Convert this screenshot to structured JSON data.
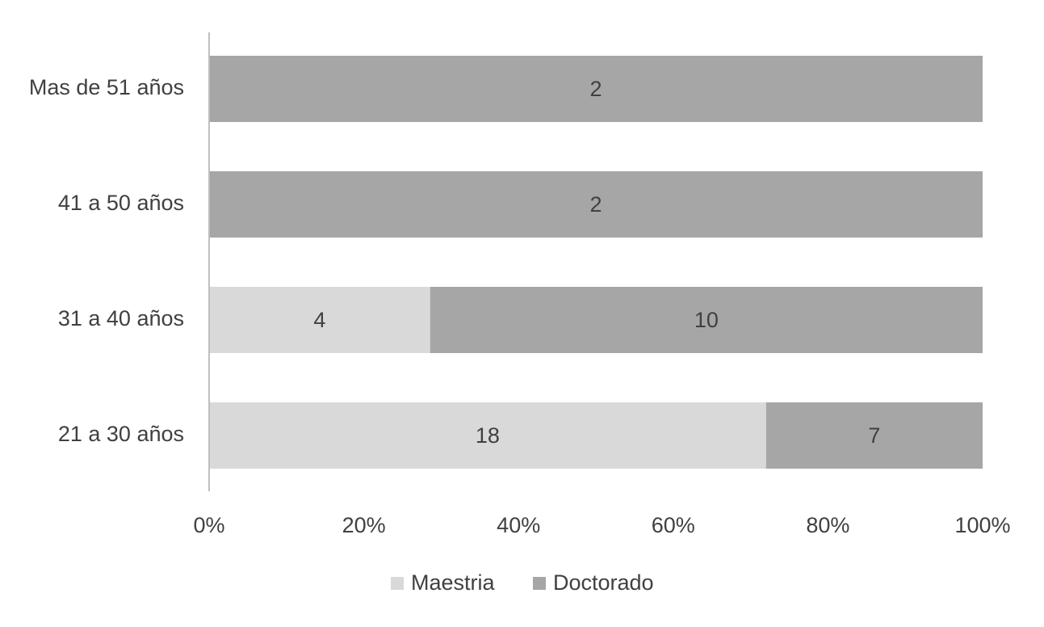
{
  "chart_data": {
    "type": "bar",
    "orientation": "horizontal",
    "stacking": "percent",
    "categories": [
      "Mas de 51 años",
      "41 a 50 años",
      "31 a 40 años",
      "21 a 30 años"
    ],
    "series": [
      {
        "name": "Maestria",
        "color": "#d9d9d9",
        "values": [
          0,
          0,
          4,
          18
        ]
      },
      {
        "name": "Doctorado",
        "color": "#a6a6a6",
        "values": [
          2,
          2,
          10,
          7
        ]
      }
    ],
    "xlim": [
      0,
      100
    ],
    "xticks": [
      {
        "value": 0,
        "label": "0%"
      },
      {
        "value": 20,
        "label": "20%"
      },
      {
        "value": 40,
        "label": "40%"
      },
      {
        "value": 60,
        "label": "60%"
      },
      {
        "value": 80,
        "label": "80%"
      },
      {
        "value": 100,
        "label": "100%"
      }
    ],
    "grid": false,
    "legend": "bottom"
  }
}
